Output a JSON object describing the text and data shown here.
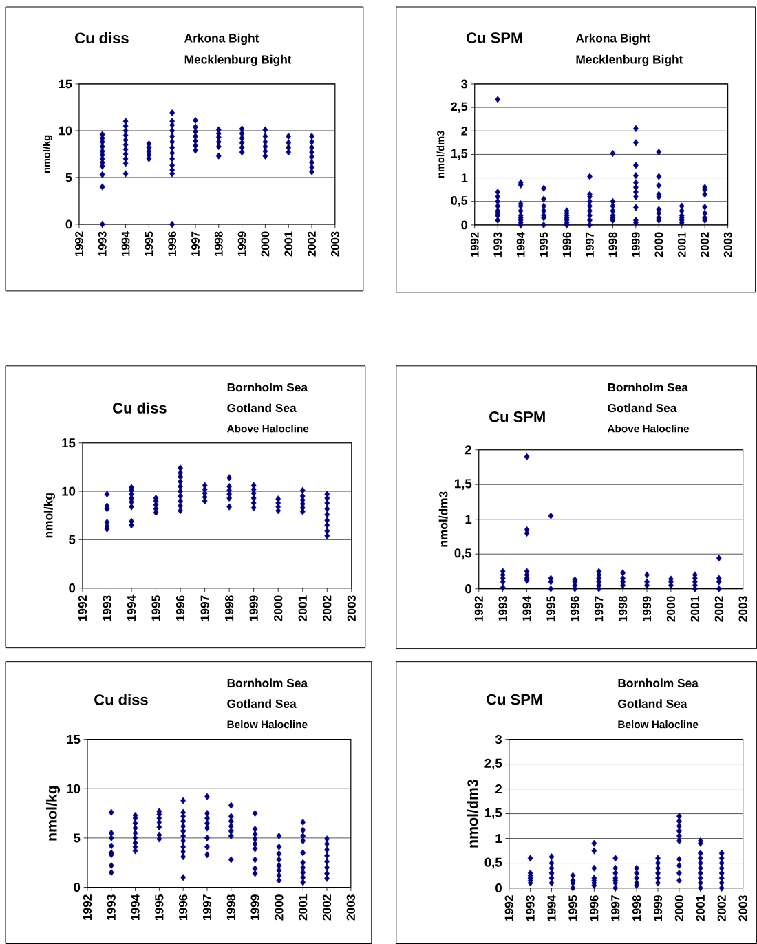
{
  "chart_data": [
    {
      "type": "scatter",
      "title": "Cu diss",
      "annotations": [
        "Arkona Bight",
        "Mecklenburg Bight"
      ],
      "ylabel": "nmol/kg",
      "marker": "diamond",
      "grid": "y",
      "xlim": [
        1992,
        2003
      ],
      "xticks": [
        1992,
        1993,
        1994,
        1995,
        1996,
        1997,
        1998,
        1999,
        2000,
        2001,
        2002,
        2003
      ],
      "ylim": [
        0,
        15
      ],
      "yticks": [
        0,
        5,
        10,
        15
      ],
      "series": [
        {
          "color": "#000080",
          "x": [
            1993,
            1993,
            1993,
            1993,
            1993,
            1993,
            1993,
            1993,
            1993,
            1993,
            1993,
            1993
          ],
          "values": [
            0,
            4,
            5.3,
            6.2,
            6.6,
            7.0,
            7.4,
            7.8,
            8.3,
            8.8,
            9.2,
            9.6
          ]
        },
        {
          "color": "#000080",
          "x": [
            1994,
            1994,
            1994,
            1994,
            1994,
            1994,
            1994,
            1994,
            1994,
            1994,
            1994
          ],
          "values": [
            5.4,
            6.5,
            7.0,
            7.5,
            8.0,
            8.5,
            9.0,
            9.5,
            10.0,
            10.5,
            11.0
          ]
        },
        {
          "color": "#000080",
          "x": [
            1995,
            1995,
            1995,
            1995,
            1995
          ],
          "values": [
            7.0,
            7.4,
            7.8,
            8.2,
            8.6
          ]
        },
        {
          "color": "#000080",
          "x": [
            1996,
            1996,
            1996,
            1996,
            1996,
            1996,
            1996,
            1996,
            1996,
            1996,
            1996,
            1996,
            1996
          ],
          "values": [
            0,
            5.4,
            5.8,
            6.3,
            7.0,
            7.6,
            8.2,
            8.8,
            9.4,
            10.0,
            10.6,
            11.0,
            11.9
          ]
        },
        {
          "color": "#000080",
          "x": [
            1997,
            1997,
            1997,
            1997,
            1997,
            1997,
            1997
          ],
          "values": [
            7.9,
            8.4,
            8.9,
            9.4,
            9.9,
            10.4,
            11.1
          ]
        },
        {
          "color": "#000080",
          "x": [
            1998,
            1998,
            1998,
            1998,
            1998,
            1998
          ],
          "values": [
            7.3,
            8.3,
            8.8,
            9.3,
            9.7,
            10.1
          ]
        },
        {
          "color": "#000080",
          "x": [
            1999,
            1999,
            1999,
            1999,
            1999,
            1999
          ],
          "values": [
            7.7,
            8.2,
            8.7,
            9.2,
            9.7,
            10.2
          ]
        },
        {
          "color": "#000080",
          "x": [
            2000,
            2000,
            2000,
            2000,
            2000,
            2000
          ],
          "values": [
            7.3,
            7.8,
            8.3,
            8.8,
            9.4,
            10.1
          ]
        },
        {
          "color": "#000080",
          "x": [
            2001,
            2001,
            2001,
            2001
          ],
          "values": [
            7.7,
            8.2,
            8.7,
            9.4
          ]
        },
        {
          "color": "#000080",
          "x": [
            2002,
            2002,
            2002,
            2002,
            2002,
            2002,
            2002,
            2002
          ],
          "values": [
            5.6,
            6.1,
            6.6,
            7.2,
            7.7,
            8.2,
            8.8,
            9.4
          ]
        }
      ]
    },
    {
      "type": "scatter",
      "title": "Cu SPM",
      "annotations": [
        "Arkona Bight",
        "Mecklenburg Bight"
      ],
      "ylabel": "nmol/dm3",
      "marker": "diamond",
      "grid": "y",
      "xlim": [
        1992,
        2003
      ],
      "xticks": [
        1992,
        1993,
        1994,
        1995,
        1996,
        1997,
        1998,
        1999,
        2000,
        2001,
        2002,
        2003
      ],
      "ylim": [
        0,
        3
      ],
      "yticks": [
        0,
        {
          "value": 0.5,
          "label": "0,5"
        },
        1,
        {
          "value": 1.5,
          "label": "1,5"
        },
        2,
        {
          "value": 2.5,
          "label": "2,5"
        },
        3
      ],
      "series": [
        {
          "color": "#000080",
          "x": [
            1993,
            1993,
            1993,
            1993,
            1993,
            1993,
            1993,
            1993,
            1993
          ],
          "values": [
            0.1,
            0.2,
            0.25,
            0.3,
            0.4,
            0.5,
            0.6,
            0.7,
            2.67
          ]
        },
        {
          "color": "#000080",
          "x": [
            1994,
            1994,
            1994,
            1994,
            1994,
            1994,
            1994,
            1994,
            1994,
            1994
          ],
          "values": [
            0,
            0.05,
            0.1,
            0.15,
            0.2,
            0.3,
            0.4,
            0.45,
            0.85,
            0.9
          ]
        },
        {
          "color": "#000080",
          "x": [
            1995,
            1995,
            1995,
            1995,
            1995,
            1995,
            1995
          ],
          "values": [
            0,
            0.15,
            0.2,
            0.3,
            0.4,
            0.55,
            0.78
          ]
        },
        {
          "color": "#000080",
          "x": [
            1996,
            1996,
            1996,
            1996,
            1996,
            1996,
            1996
          ],
          "values": [
            0,
            0.05,
            0.1,
            0.15,
            0.2,
            0.25,
            0.3
          ]
        },
        {
          "color": "#000080",
          "x": [
            1997,
            1997,
            1997,
            1997,
            1997,
            1997,
            1997,
            1997,
            1997
          ],
          "values": [
            0,
            0.1,
            0.2,
            0.3,
            0.4,
            0.5,
            0.6,
            0.65,
            1.03
          ]
        },
        {
          "color": "#000080",
          "x": [
            1998,
            1998,
            1998,
            1998,
            1998,
            1998,
            1998
          ],
          "values": [
            0.1,
            0.15,
            0.2,
            0.3,
            0.4,
            0.5,
            1.52
          ]
        },
        {
          "color": "#000080",
          "x": [
            1999,
            1999,
            1999,
            1999,
            1999,
            1999,
            1999,
            1999,
            1999,
            1999,
            1999
          ],
          "values": [
            0.05,
            0.1,
            0.37,
            0.6,
            0.7,
            0.8,
            0.9,
            1.05,
            1.27,
            1.75,
            2.05
          ]
        },
        {
          "color": "#000080",
          "x": [
            2000,
            2000,
            2000,
            2000,
            2000,
            2000,
            2000,
            2000,
            2000
          ],
          "values": [
            0.1,
            0.15,
            0.25,
            0.33,
            0.6,
            0.65,
            0.84,
            1.03,
            1.55
          ]
        },
        {
          "color": "#000080",
          "x": [
            2001,
            2001,
            2001,
            2001,
            2001,
            2001
          ],
          "values": [
            0.05,
            0.1,
            0.15,
            0.2,
            0.3,
            0.4
          ]
        },
        {
          "color": "#000080",
          "x": [
            2002,
            2002,
            2002,
            2002,
            2002,
            2002,
            2002
          ],
          "values": [
            0.1,
            0.15,
            0.25,
            0.38,
            0.65,
            0.75,
            0.8
          ]
        }
      ]
    },
    {
      "type": "scatter",
      "title": "Cu diss",
      "annotations": [
        "Bornholm Sea",
        "Gotland Sea",
        "Above Halocline"
      ],
      "ylabel": "nmol/kg",
      "marker": "diamond",
      "grid": "y",
      "xlim": [
        1992,
        2003
      ],
      "xticks": [
        1992,
        1993,
        1994,
        1995,
        1996,
        1997,
        1998,
        1999,
        2000,
        2001,
        2002,
        2003
      ],
      "ylim": [
        0,
        15
      ],
      "yticks": [
        0,
        5,
        10,
        15
      ],
      "series": [
        {
          "color": "#000080",
          "x": [
            1993,
            1993,
            1993,
            1993,
            1993,
            1993
          ],
          "values": [
            6.1,
            6.4,
            6.8,
            8.2,
            8.5,
            9.7
          ]
        },
        {
          "color": "#000080",
          "x": [
            1994,
            1994,
            1994,
            1994,
            1994,
            1994,
            1994,
            1994
          ],
          "values": [
            6.5,
            6.9,
            8.4,
            8.9,
            9.3,
            9.7,
            10.1,
            10.4
          ]
        },
        {
          "color": "#000080",
          "x": [
            1995,
            1995,
            1995,
            1995,
            1995
          ],
          "values": [
            7.8,
            8.2,
            8.6,
            9.0,
            9.3
          ]
        },
        {
          "color": "#000080",
          "x": [
            1996,
            1996,
            1996,
            1996,
            1996,
            1996,
            1996,
            1996,
            1996,
            1996
          ],
          "values": [
            8.0,
            8.5,
            9.0,
            9.5,
            10.0,
            10.5,
            11.0,
            11.5,
            11.9,
            12.4
          ]
        },
        {
          "color": "#000080",
          "x": [
            1997,
            1997,
            1997,
            1997,
            1997
          ],
          "values": [
            9.0,
            9.4,
            9.8,
            10.2,
            10.6
          ]
        },
        {
          "color": "#000080",
          "x": [
            1998,
            1998,
            1998,
            1998,
            1998,
            1998
          ],
          "values": [
            8.4,
            9.3,
            9.7,
            10.1,
            10.5,
            11.4
          ]
        },
        {
          "color": "#000080",
          "x": [
            1999,
            1999,
            1999,
            1999,
            1999,
            1999
          ],
          "values": [
            8.3,
            8.8,
            9.3,
            9.8,
            10.2,
            10.6
          ]
        },
        {
          "color": "#000080",
          "x": [
            2000,
            2000,
            2000,
            2000
          ],
          "values": [
            8.0,
            8.4,
            8.8,
            9.2
          ]
        },
        {
          "color": "#000080",
          "x": [
            2001,
            2001,
            2001,
            2001,
            2001,
            2001
          ],
          "values": [
            7.9,
            8.3,
            8.7,
            9.1,
            9.5,
            10.1
          ]
        },
        {
          "color": "#000080",
          "x": [
            2002,
            2002,
            2002,
            2002,
            2002,
            2002,
            2002,
            2002,
            2002
          ],
          "values": [
            5.4,
            5.9,
            6.5,
            7.0,
            7.6,
            8.2,
            8.8,
            9.3,
            9.7
          ]
        }
      ]
    },
    {
      "type": "scatter",
      "title": "Cu SPM",
      "annotations": [
        "Bornholm Sea",
        "Gotland Sea",
        "Above Halocline"
      ],
      "ylabel": "nmol/dm3",
      "marker": "diamond",
      "grid": "y",
      "xlim": [
        1992,
        2003
      ],
      "xticks": [
        1992,
        1993,
        1994,
        1995,
        1996,
        1997,
        1998,
        1999,
        2000,
        2001,
        2002,
        2003
      ],
      "ylim": [
        0,
        2
      ],
      "yticks": [
        0,
        {
          "value": 0.5,
          "label": "0,5"
        },
        1,
        {
          "value": 1.5,
          "label": "1,5"
        },
        2
      ],
      "series": [
        {
          "color": "#000080",
          "x": [
            1993,
            1993,
            1993,
            1993,
            1993
          ],
          "values": [
            0.02,
            0.1,
            0.15,
            0.2,
            0.25
          ]
        },
        {
          "color": "#000080",
          "x": [
            1994,
            1994,
            1994,
            1994,
            1994,
            1994,
            1994
          ],
          "values": [
            0.12,
            0.15,
            0.2,
            0.25,
            0.8,
            0.85,
            1.9
          ]
        },
        {
          "color": "#000080",
          "x": [
            1995,
            1995,
            1995,
            1995
          ],
          "values": [
            0,
            0.1,
            0.15,
            1.05
          ]
        },
        {
          "color": "#000080",
          "x": [
            1996,
            1996,
            1996,
            1996
          ],
          "values": [
            0,
            0.05,
            0.1,
            0.13
          ]
        },
        {
          "color": "#000080",
          "x": [
            1997,
            1997,
            1997,
            1997,
            1997,
            1997
          ],
          "values": [
            0,
            0.05,
            0.1,
            0.15,
            0.2,
            0.25
          ]
        },
        {
          "color": "#000080",
          "x": [
            1998,
            1998,
            1998,
            1998
          ],
          "values": [
            0.05,
            0.1,
            0.15,
            0.23
          ]
        },
        {
          "color": "#000080",
          "x": [
            1999,
            1999,
            1999
          ],
          "values": [
            0.05,
            0.1,
            0.2
          ]
        },
        {
          "color": "#000080",
          "x": [
            2000,
            2000,
            2000
          ],
          "values": [
            0.05,
            0.1,
            0.14
          ]
        },
        {
          "color": "#000080",
          "x": [
            2001,
            2001,
            2001,
            2001,
            2001
          ],
          "values": [
            0,
            0.05,
            0.1,
            0.15,
            0.2
          ]
        },
        {
          "color": "#000080",
          "x": [
            2002,
            2002,
            2002,
            2002
          ],
          "values": [
            0,
            0.1,
            0.15,
            0.44
          ]
        }
      ]
    },
    {
      "type": "scatter",
      "title": "Cu diss",
      "annotations": [
        "Bornholm Sea",
        "Gotland Sea",
        "Below Halocline"
      ],
      "ylabel": "nmol/kg",
      "marker": "diamond",
      "grid": "y",
      "xlim": [
        1992,
        2003
      ],
      "xticks": [
        1992,
        1993,
        1994,
        1995,
        1996,
        1997,
        1998,
        1999,
        2000,
        2001,
        2002,
        2003
      ],
      "ylim": [
        0,
        15
      ],
      "yticks": [
        0,
        5,
        10,
        15
      ],
      "series": [
        {
          "color": "#000080",
          "x": [
            1993,
            1993,
            1993,
            1993,
            1993,
            1993,
            1993,
            1993
          ],
          "values": [
            1.5,
            2.2,
            3.3,
            3.5,
            4.2,
            5.0,
            5.5,
            7.6
          ]
        },
        {
          "color": "#000080",
          "x": [
            1994,
            1994,
            1994,
            1994,
            1994,
            1994,
            1994,
            1994,
            1994
          ],
          "values": [
            3.7,
            4.1,
            4.5,
            5.0,
            5.5,
            6.0,
            6.5,
            7.0,
            7.3
          ]
        },
        {
          "color": "#000080",
          "x": [
            1995,
            1995,
            1995,
            1995,
            1995,
            1995,
            1995
          ],
          "values": [
            4.9,
            5.3,
            6.1,
            6.6,
            7.0,
            7.4,
            7.7
          ]
        },
        {
          "color": "#000080",
          "x": [
            1996,
            1996,
            1996,
            1996,
            1996,
            1996,
            1996,
            1996,
            1996,
            1996,
            1996,
            1996
          ],
          "values": [
            1.0,
            3.1,
            3.6,
            4.1,
            4.7,
            5.2,
            5.7,
            6.2,
            6.7,
            7.2,
            7.6,
            8.8
          ]
        },
        {
          "color": "#000080",
          "x": [
            1997,
            1997,
            1997,
            1997,
            1997,
            1997,
            1997,
            1997
          ],
          "values": [
            3.3,
            4.1,
            5.0,
            6.0,
            6.5,
            7.0,
            7.5,
            9.2
          ]
        },
        {
          "color": "#000080",
          "x": [
            1998,
            1998,
            1998,
            1998,
            1998,
            1998,
            1998
          ],
          "values": [
            2.8,
            5.2,
            5.7,
            6.2,
            6.7,
            7.2,
            8.3
          ]
        },
        {
          "color": "#000080",
          "x": [
            1999,
            1999,
            1999,
            1999,
            1999,
            1999,
            1999,
            1999,
            1999
          ],
          "values": [
            1.4,
            1.9,
            2.8,
            3.9,
            4.4,
            4.9,
            5.4,
            5.9,
            7.5
          ]
        },
        {
          "color": "#000080",
          "x": [
            2000,
            2000,
            2000,
            2000,
            2000,
            2000,
            2000,
            2000
          ],
          "values": [
            0.7,
            1.2,
            1.7,
            2.2,
            2.8,
            3.4,
            4.1,
            5.2
          ]
        },
        {
          "color": "#000080",
          "x": [
            2001,
            2001,
            2001,
            2001,
            2001,
            2001,
            2001,
            2001,
            2001,
            2001
          ],
          "values": [
            0.5,
            1.0,
            1.5,
            2.0,
            2.5,
            3.5,
            4.7,
            5.2,
            5.8,
            6.6
          ]
        },
        {
          "color": "#000080",
          "x": [
            2002,
            2002,
            2002,
            2002,
            2002,
            2002,
            2002,
            2002
          ],
          "values": [
            0.9,
            1.4,
            2.0,
            2.6,
            3.2,
            3.8,
            4.4,
            4.9
          ]
        }
      ]
    },
    {
      "type": "scatter",
      "title": "Cu SPM",
      "annotations": [
        "Bornholm Sea",
        "Gotland Sea",
        "Below Halocline"
      ],
      "ylabel": "nmol/dm3",
      "marker": "diamond",
      "grid": "y",
      "xlim": [
        1992,
        2003
      ],
      "xticks": [
        1992,
        1993,
        1994,
        1995,
        1996,
        1997,
        1998,
        1999,
        2000,
        2001,
        2002,
        2003
      ],
      "ylim": [
        0,
        3
      ],
      "yticks": [
        0,
        {
          "value": 0.5,
          "label": "0,5"
        },
        1,
        {
          "value": 1.5,
          "label": "1,5"
        },
        2,
        {
          "value": 2.5,
          "label": "2,5"
        },
        3
      ],
      "series": [
        {
          "color": "#000080",
          "x": [
            1993,
            1993,
            1993,
            1993,
            1993,
            1993
          ],
          "values": [
            0.1,
            0.15,
            0.2,
            0.25,
            0.3,
            0.6
          ]
        },
        {
          "color": "#000080",
          "x": [
            1994,
            1994,
            1994,
            1994,
            1994,
            1994
          ],
          "values": [
            0.1,
            0.2,
            0.3,
            0.4,
            0.5,
            0.63
          ]
        },
        {
          "color": "#000080",
          "x": [
            1995,
            1995,
            1995,
            1995
          ],
          "values": [
            0,
            0.1,
            0.15,
            0.25
          ]
        },
        {
          "color": "#000080",
          "x": [
            1996,
            1996,
            1996,
            1996,
            1996,
            1996,
            1996
          ],
          "values": [
            0.05,
            0.1,
            0.15,
            0.2,
            0.4,
            0.75,
            0.9
          ]
        },
        {
          "color": "#000080",
          "x": [
            1997,
            1997,
            1997,
            1997,
            1997,
            1997,
            1997
          ],
          "values": [
            0,
            0.1,
            0.15,
            0.2,
            0.3,
            0.4,
            0.6
          ]
        },
        {
          "color": "#000080",
          "x": [
            1998,
            1998,
            1998,
            1998,
            1998
          ],
          "values": [
            0.05,
            0.1,
            0.2,
            0.3,
            0.4
          ]
        },
        {
          "color": "#000080",
          "x": [
            1999,
            1999,
            1999,
            1999,
            1999,
            1999
          ],
          "values": [
            0.1,
            0.2,
            0.3,
            0.4,
            0.5,
            0.6
          ]
        },
        {
          "color": "#000080",
          "x": [
            2000,
            2000,
            2000,
            2000,
            2000,
            2000,
            2000,
            2000,
            2000,
            2000
          ],
          "values": [
            0.15,
            0.3,
            0.45,
            0.58,
            0.95,
            1.05,
            1.15,
            1.25,
            1.35,
            1.45
          ]
        },
        {
          "color": "#000080",
          "x": [
            2001,
            2001,
            2001,
            2001,
            2001,
            2001,
            2001,
            2001,
            2001,
            2001
          ],
          "values": [
            0,
            0.1,
            0.2,
            0.3,
            0.4,
            0.5,
            0.6,
            0.7,
            0.9,
            0.95
          ]
        },
        {
          "color": "#000080",
          "x": [
            2002,
            2002,
            2002,
            2002,
            2002,
            2002,
            2002,
            2002
          ],
          "values": [
            0,
            0.1,
            0.2,
            0.3,
            0.4,
            0.5,
            0.6,
            0.7
          ]
        }
      ]
    }
  ]
}
